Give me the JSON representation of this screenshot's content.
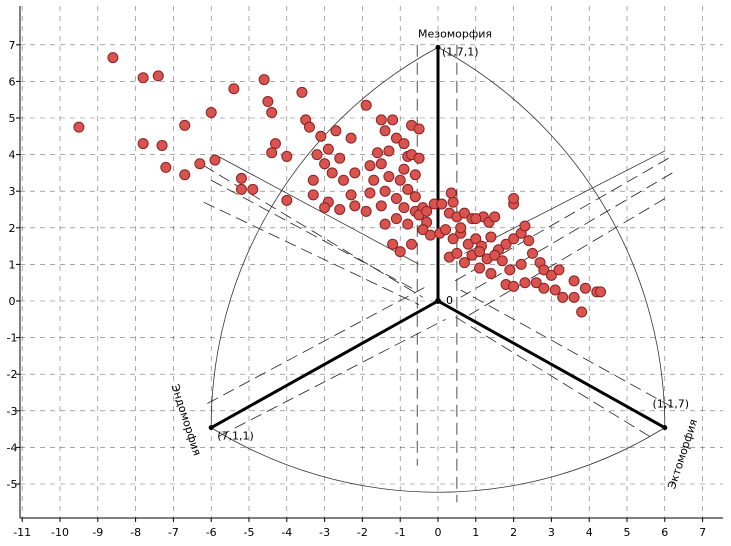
{
  "chart_data": {
    "type": "scatter",
    "title": "",
    "xlabel": "",
    "ylabel": "",
    "xlim": [
      -11,
      7.3
    ],
    "ylim": [
      -5.6,
      7.8
    ],
    "grid": true,
    "x_ticks": [
      "-11",
      "-10",
      "-9",
      "-8",
      "-7",
      "-6",
      "-5",
      "-4",
      "-3",
      "-2",
      "-1",
      "0",
      "1",
      "2",
      "3",
      "4",
      "5",
      "6",
      "7"
    ],
    "y_ticks": [
      "-5",
      "-4",
      "-3",
      "-2",
      "-1",
      "0",
      "1",
      "2",
      "3",
      "4",
      "5",
      "6",
      "7"
    ],
    "origin_label": "0",
    "vertices": [
      {
        "name": "Мезоморфия",
        "coords_label": "(1,7,1)",
        "x": 0,
        "y": 6.93
      },
      {
        "name": "Эндоморфия",
        "coords_label": "(7,1,1)",
        "x": -6,
        "y": -3.46
      },
      {
        "name": "Эктоморфия",
        "coords_label": "(1,1,7)",
        "x": 6,
        "y": -3.46
      }
    ],
    "point_color": "#d9534f",
    "point_stroke": "#8a2222",
    "series": [
      {
        "points": [
          [
            -9.5,
            4.75
          ],
          [
            -8.6,
            6.65
          ],
          [
            -7.8,
            6.1
          ],
          [
            -7.4,
            6.15
          ],
          [
            -7.8,
            4.3
          ],
          [
            -7.3,
            4.25
          ],
          [
            -7.2,
            3.65
          ],
          [
            -6.7,
            4.8
          ],
          [
            -6.3,
            3.75
          ],
          [
            -6.7,
            3.45
          ],
          [
            -5.9,
            3.85
          ],
          [
            -6.0,
            5.15
          ],
          [
            -5.4,
            5.8
          ],
          [
            -4.6,
            6.05
          ],
          [
            -4.5,
            5.45
          ],
          [
            -4.4,
            5.15
          ],
          [
            -3.6,
            5.7
          ],
          [
            -3.5,
            4.95
          ],
          [
            -4.3,
            4.3
          ],
          [
            -4.4,
            4.05
          ],
          [
            -4.0,
            3.95
          ],
          [
            -5.2,
            3.35
          ],
          [
            -5.2,
            3.05
          ],
          [
            -4.9,
            3.05
          ],
          [
            -4.0,
            2.75
          ],
          [
            -3.4,
            4.75
          ],
          [
            -3.1,
            4.5
          ],
          [
            -2.7,
            4.65
          ],
          [
            -2.3,
            4.45
          ],
          [
            -2.9,
            4.15
          ],
          [
            -3.2,
            4.0
          ],
          [
            -2.6,
            3.9
          ],
          [
            -3.0,
            3.75
          ],
          [
            -3.3,
            3.3
          ],
          [
            -2.8,
            3.5
          ],
          [
            -2.5,
            3.3
          ],
          [
            -2.2,
            3.5
          ],
          [
            -3.3,
            2.9
          ],
          [
            -2.9,
            2.7
          ],
          [
            -3.0,
            2.55
          ],
          [
            -2.6,
            2.5
          ],
          [
            -2.2,
            2.6
          ],
          [
            -1.9,
            2.45
          ],
          [
            -1.5,
            2.6
          ],
          [
            -2.3,
            2.9
          ],
          [
            -1.8,
            2.95
          ],
          [
            -1.4,
            3.0
          ],
          [
            -1.7,
            3.3
          ],
          [
            -1.3,
            3.4
          ],
          [
            -1.8,
            3.7
          ],
          [
            -1.5,
            3.75
          ],
          [
            -1.6,
            4.05
          ],
          [
            -1.3,
            4.1
          ],
          [
            -1.1,
            4.45
          ],
          [
            -0.9,
            4.3
          ],
          [
            -0.8,
            3.95
          ],
          [
            -1.4,
            4.65
          ],
          [
            -1.5,
            4.95
          ],
          [
            -1.2,
            4.95
          ],
          [
            -0.7,
            4.8
          ],
          [
            -0.5,
            4.7
          ],
          [
            -1.9,
            5.35
          ],
          [
            -0.7,
            4.0
          ],
          [
            -0.5,
            3.9
          ],
          [
            -0.9,
            3.6
          ],
          [
            -0.6,
            3.45
          ],
          [
            -1.0,
            3.3
          ],
          [
            -0.8,
            3.05
          ],
          [
            -0.6,
            2.85
          ],
          [
            -1.1,
            2.8
          ],
          [
            -0.9,
            2.55
          ],
          [
            -0.6,
            2.45
          ],
          [
            -0.4,
            2.55
          ],
          [
            -0.1,
            2.65
          ],
          [
            -1.1,
            2.25
          ],
          [
            -0.8,
            2.1
          ],
          [
            -0.5,
            2.35
          ],
          [
            -0.3,
            2.15
          ],
          [
            -1.4,
            2.1
          ],
          [
            -1.2,
            1.55
          ],
          [
            -1.0,
            1.35
          ],
          [
            -0.7,
            1.55
          ],
          [
            -0.4,
            1.95
          ],
          [
            -0.2,
            1.8
          ],
          [
            0.05,
            1.85
          ],
          [
            -0.3,
            2.45
          ],
          [
            0.1,
            2.65
          ],
          [
            0.3,
            2.4
          ],
          [
            0.4,
            2.7
          ],
          [
            0.35,
            2.95
          ],
          [
            0.5,
            2.3
          ],
          [
            0.7,
            2.4
          ],
          [
            0.9,
            2.25
          ],
          [
            1.2,
            2.3
          ],
          [
            1.35,
            2.15
          ],
          [
            0.2,
            1.95
          ],
          [
            0.4,
            1.7
          ],
          [
            0.6,
            1.85
          ],
          [
            0.8,
            1.55
          ],
          [
            1.0,
            1.7
          ],
          [
            1.15,
            1.5
          ],
          [
            1.4,
            1.75
          ],
          [
            1.6,
            1.4
          ],
          [
            1.8,
            1.55
          ],
          [
            2.0,
            1.7
          ],
          [
            2.2,
            1.85
          ],
          [
            2.4,
            1.65
          ],
          [
            0.3,
            1.2
          ],
          [
            0.5,
            1.3
          ],
          [
            0.7,
            1.05
          ],
          [
            0.9,
            1.25
          ],
          [
            1.1,
            1.35
          ],
          [
            1.3,
            1.15
          ],
          [
            1.5,
            1.25
          ],
          [
            1.7,
            1.1
          ],
          [
            1.1,
            0.9
          ],
          [
            1.4,
            0.75
          ],
          [
            1.9,
            0.85
          ],
          [
            2.2,
            1.0
          ],
          [
            2.5,
            1.3
          ],
          [
            2.7,
            1.05
          ],
          [
            2.8,
            0.85
          ],
          [
            3.0,
            0.7
          ],
          [
            3.2,
            0.85
          ],
          [
            1.8,
            0.45
          ],
          [
            2.0,
            0.4
          ],
          [
            2.3,
            0.5
          ],
          [
            2.6,
            0.5
          ],
          [
            2.8,
            0.35
          ],
          [
            3.1,
            0.3
          ],
          [
            3.3,
            0.1
          ],
          [
            3.6,
            0.1
          ],
          [
            3.6,
            0.55
          ],
          [
            3.9,
            0.35
          ],
          [
            3.8,
            -0.3
          ],
          [
            4.2,
            0.25
          ],
          [
            4.3,
            0.25
          ],
          [
            2.0,
            2.65
          ],
          [
            2.0,
            2.8
          ],
          [
            1.5,
            2.3
          ],
          [
            1.0,
            2.25
          ],
          [
            2.3,
            2.05
          ],
          [
            0.6,
            2.0
          ]
        ]
      }
    ]
  }
}
